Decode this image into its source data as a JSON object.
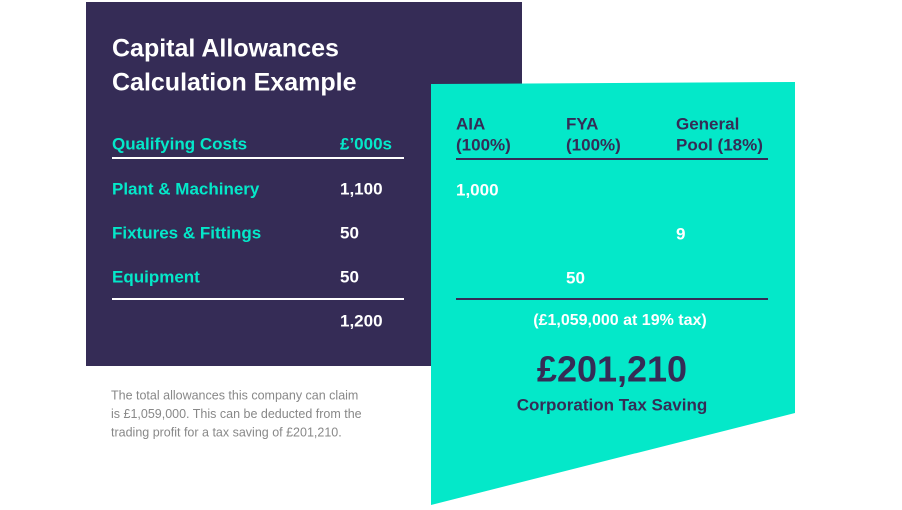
{
  "title": [
    "Capital Allowances",
    "Calculation Example"
  ],
  "costs": {
    "headers": [
      "Qualifying Costs",
      "£’000s"
    ],
    "rows": [
      [
        "Plant & Machinery",
        "1,100"
      ],
      [
        "Fixtures & Fittings",
        "50"
      ],
      [
        "Equipment",
        "50"
      ]
    ],
    "total": "1,200"
  },
  "allowances": {
    "headers": [
      [
        "AIA",
        "(100%)"
      ],
      [
        "FYA",
        "(100%)"
      ],
      [
        "General",
        "Pool (18%)"
      ]
    ],
    "values": [
      "1,000",
      "9",
      "50"
    ],
    "tax_note": "(£1,059,000 at 19% tax)"
  },
  "saving": {
    "amount": "£201,210",
    "label": "Corporation Tax Saving"
  },
  "footnote": [
    "The total allowances this company can claim",
    "is £1,059,000. This can be deducted from the",
    "trading profit for a tax saving of £201,210."
  ]
}
